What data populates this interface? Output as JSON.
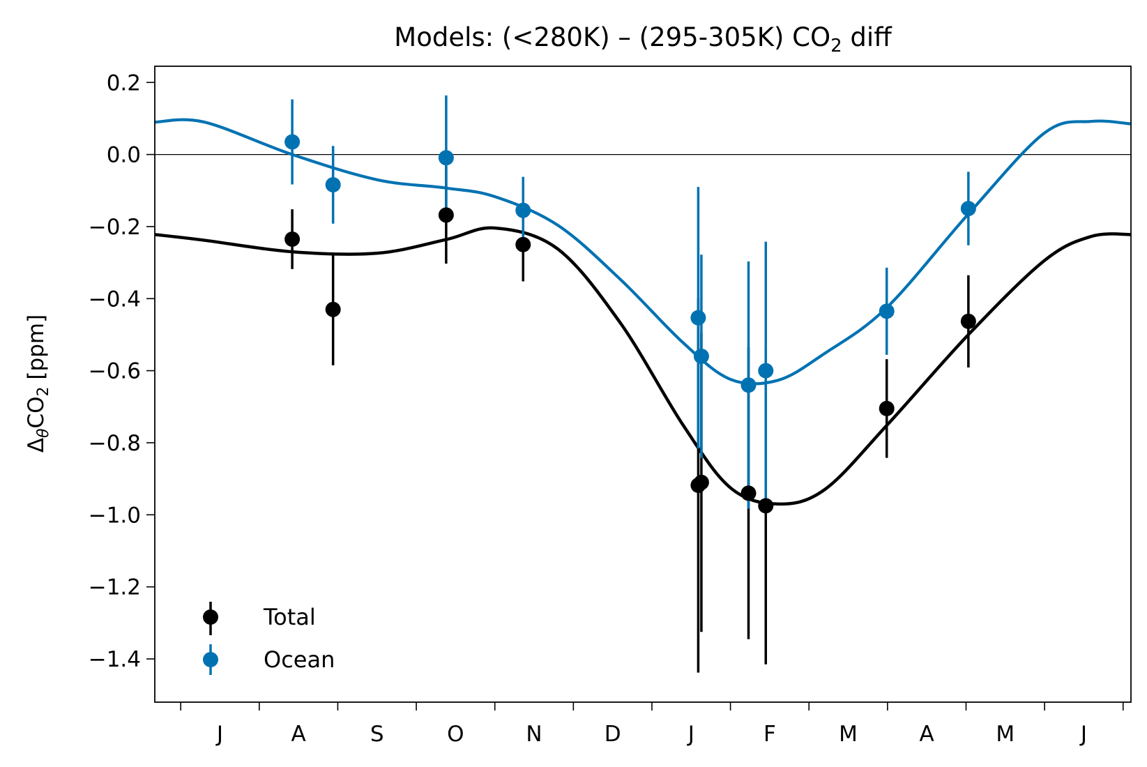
{
  "chart_data": {
    "type": "scatter",
    "title": "Models: (<280K) – (295-305K) CO",
    "title_sub": "2",
    "title_suffix": " diff",
    "ylabel": "Δ",
    "ylabel_sub1": "θ",
    "ylabel_mid": "CO",
    "ylabel_sub2": "2",
    "ylabel_suffix": " [ppm]",
    "ylim": [
      -1.52,
      0.245
    ],
    "yticks": [
      0.2,
      0.0,
      -0.2,
      -0.4,
      -0.6,
      -0.8,
      -1.0,
      -1.2,
      -1.4
    ],
    "ytick_labels": [
      "0.2",
      "0.0",
      "−0.2",
      "−0.4",
      "−0.6",
      "−0.8",
      "−1.0",
      "−1.2",
      "−1.4"
    ],
    "xlim": [
      -0.33,
      12.1
    ],
    "month_labels": [
      "J",
      "A",
      "S",
      "O",
      "N",
      "D",
      "J",
      "F",
      "M",
      "A",
      "M",
      "J"
    ],
    "zero_line": true,
    "grid": false,
    "legend_placement": "lower-left",
    "series": [
      {
        "name": "Total",
        "color": "#000000",
        "points": [
          {
            "x": 1.42,
            "y": -0.235,
            "err": 0.083
          },
          {
            "x": 1.94,
            "y": -0.43,
            "err": 0.155
          },
          {
            "x": 3.38,
            "y": -0.168,
            "err": 0.135
          },
          {
            "x": 4.36,
            "y": -0.25,
            "err": 0.102
          },
          {
            "x": 6.59,
            "y": -0.918,
            "err": 0.52
          },
          {
            "x": 6.63,
            "y": -0.91,
            "err": 0.415
          },
          {
            "x": 7.23,
            "y": -0.94,
            "err": 0.405
          },
          {
            "x": 7.45,
            "y": -0.975,
            "err": 0.44
          },
          {
            "x": 8.99,
            "y": -0.705,
            "err": 0.137
          },
          {
            "x": 10.03,
            "y": -0.463,
            "err": 0.128
          }
        ],
        "fit": [
          -0.222,
          -0.238,
          -0.27,
          -0.274,
          -0.236,
          -0.204,
          -0.262,
          -0.468,
          -0.752,
          -0.925,
          -0.97,
          -0.93,
          -0.752,
          -0.5,
          -0.294,
          -0.227,
          -0.222
        ]
      },
      {
        "name": "Ocean",
        "color": "#0072B2",
        "points": [
          {
            "x": 1.42,
            "y": 0.035,
            "err": 0.118
          },
          {
            "x": 1.94,
            "y": -0.084,
            "err": 0.108
          },
          {
            "x": 3.38,
            "y": -0.009,
            "err": 0.173
          },
          {
            "x": 4.36,
            "y": -0.155,
            "err": 0.093
          },
          {
            "x": 6.59,
            "y": -0.453,
            "err": 0.363
          },
          {
            "x": 6.63,
            "y": -0.56,
            "err": 0.282
          },
          {
            "x": 7.23,
            "y": -0.64,
            "err": 0.343
          },
          {
            "x": 7.45,
            "y": -0.6,
            "err": 0.358
          },
          {
            "x": 8.99,
            "y": -0.435,
            "err": 0.121
          },
          {
            "x": 10.03,
            "y": -0.15,
            "err": 0.102
          }
        ],
        "fit": [
          0.09,
          0.09,
          0.0,
          -0.07,
          -0.093,
          -0.117,
          -0.196,
          -0.347,
          -0.523,
          -0.624,
          -0.627,
          -0.552,
          -0.425,
          -0.165,
          0.06,
          0.092,
          0.085
        ]
      }
    ],
    "fit_x": [
      -0.33,
      0.3,
      1.42,
      2.5,
      3.38,
      4.0,
      4.8,
      5.6,
      6.4,
      7.0,
      7.6,
      8.2,
      8.99,
      10.03,
      11.0,
      11.6,
      12.1
    ]
  }
}
